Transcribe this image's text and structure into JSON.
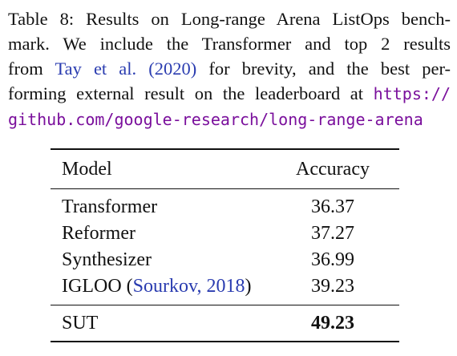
{
  "caption": {
    "line1": "Table 8: Results on Long-range Arena ListOps bench-",
    "line2": "mark.  We include the Transformer and top 2 results",
    "line3_pre": "from ",
    "line3_cite": "Tay et al. (2020)",
    "line3_post": " for brevity, and the best per-",
    "line4_pre": "forming external result on the leaderboard at ",
    "line4_url": "https://",
    "line5_url": "github.com/google-research/long-range-arena"
  },
  "table": {
    "headers": {
      "model": "Model",
      "accuracy": "Accuracy"
    },
    "rows": [
      {
        "model": "Transformer",
        "accuracy": "36.37"
      },
      {
        "model": "Reformer",
        "accuracy": "37.27"
      },
      {
        "model": "Synthesizer",
        "accuracy": "36.99"
      },
      {
        "model": "IGLOO",
        "citation": "Sourkov, 2018",
        "accuracy": "39.23"
      }
    ],
    "final_row": {
      "model": "SUT",
      "accuracy": "49.23"
    }
  }
}
